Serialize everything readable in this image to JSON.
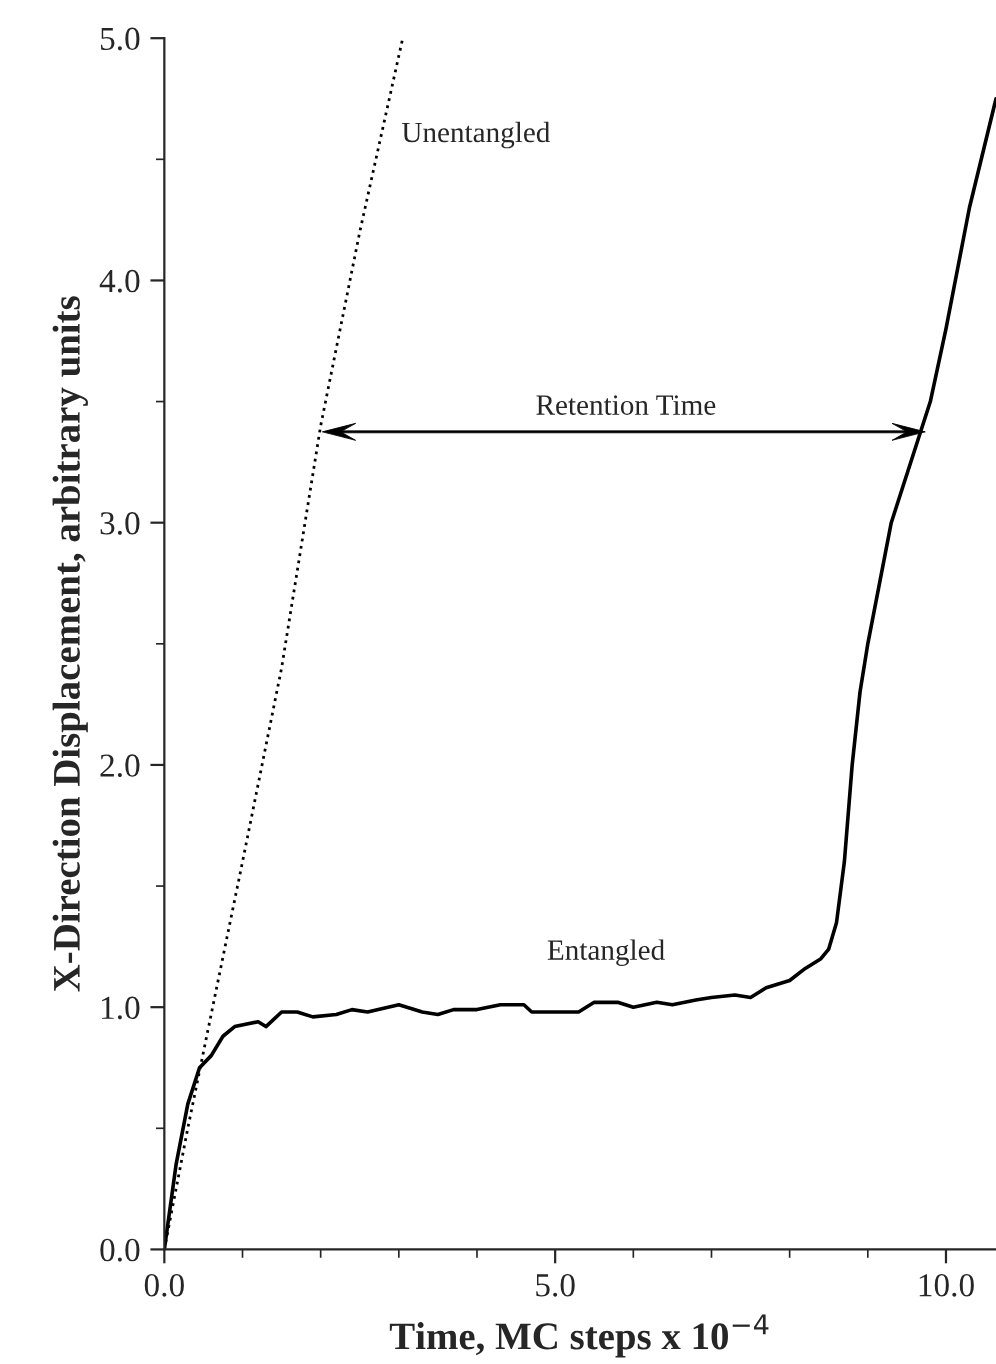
{
  "chart_data": {
    "type": "line",
    "xlabel": "Time, MC steps x 10$^{−4}$",
    "ylabel": "X-Direction Displacement, arbitrary units",
    "xlim": [
      0,
      10.64
    ],
    "ylim": [
      0,
      5.0
    ],
    "xticks": [
      {
        "value": 0,
        "label": "0.0"
      },
      {
        "value": 5,
        "label": "5.0"
      },
      {
        "value": 10,
        "label": "10.0"
      }
    ],
    "yticks": [
      {
        "value": 0,
        "label": "0.0"
      },
      {
        "value": 1,
        "label": "1.0"
      },
      {
        "value": 2,
        "label": "2.0"
      },
      {
        "value": 3,
        "label": "3.0"
      },
      {
        "value": 4,
        "label": "4.0"
      },
      {
        "value": 5,
        "label": "5.0"
      }
    ],
    "grid": false,
    "marker": "none",
    "series": [
      {
        "color": "#000000",
        "line_style": "dotted",
        "x": [
          0,
          0.3,
          1.0,
          1.5,
          2.0,
          2.5,
          3.05
        ],
        "values": [
          0,
          0.5,
          1.6,
          2.4,
          3.4,
          4.2,
          5.0
        ]
      },
      {
        "color": "#000000",
        "line_style": "solid",
        "x": [
          0,
          0.15,
          0.3,
          0.45,
          0.6,
          0.75,
          0.9,
          1.2,
          1.3,
          1.5,
          1.7,
          1.9,
          2.2,
          2.4,
          2.6,
          3.0,
          3.3,
          3.5,
          3.7,
          4.0,
          4.3,
          4.6,
          4.7,
          5.0,
          5.3,
          5.5,
          5.8,
          6.0,
          6.3,
          6.5,
          6.8,
          7.0,
          7.3,
          7.5,
          7.7,
          8.0,
          8.2,
          8.4,
          8.5,
          8.6,
          8.7,
          8.8,
          8.9,
          9.0,
          9.3,
          9.6,
          9.8,
          10.0,
          10.3,
          10.64
        ],
        "values": [
          0,
          0.35,
          0.6,
          0.75,
          0.8,
          0.88,
          0.92,
          0.94,
          0.92,
          0.98,
          0.98,
          0.96,
          0.97,
          0.99,
          0.98,
          1.01,
          0.98,
          0.97,
          0.99,
          0.99,
          1.01,
          1.01,
          0.98,
          0.98,
          0.98,
          1.02,
          1.02,
          1.0,
          1.02,
          1.01,
          1.03,
          1.04,
          1.05,
          1.04,
          1.08,
          1.11,
          1.16,
          1.2,
          1.24,
          1.35,
          1.6,
          2.0,
          2.3,
          2.5,
          3.0,
          3.3,
          3.5,
          3.8,
          4.3,
          4.75
        ]
      }
    ],
    "annotations": [
      "Unentangled",
      "Retention Time",
      "Entangled"
    ]
  }
}
